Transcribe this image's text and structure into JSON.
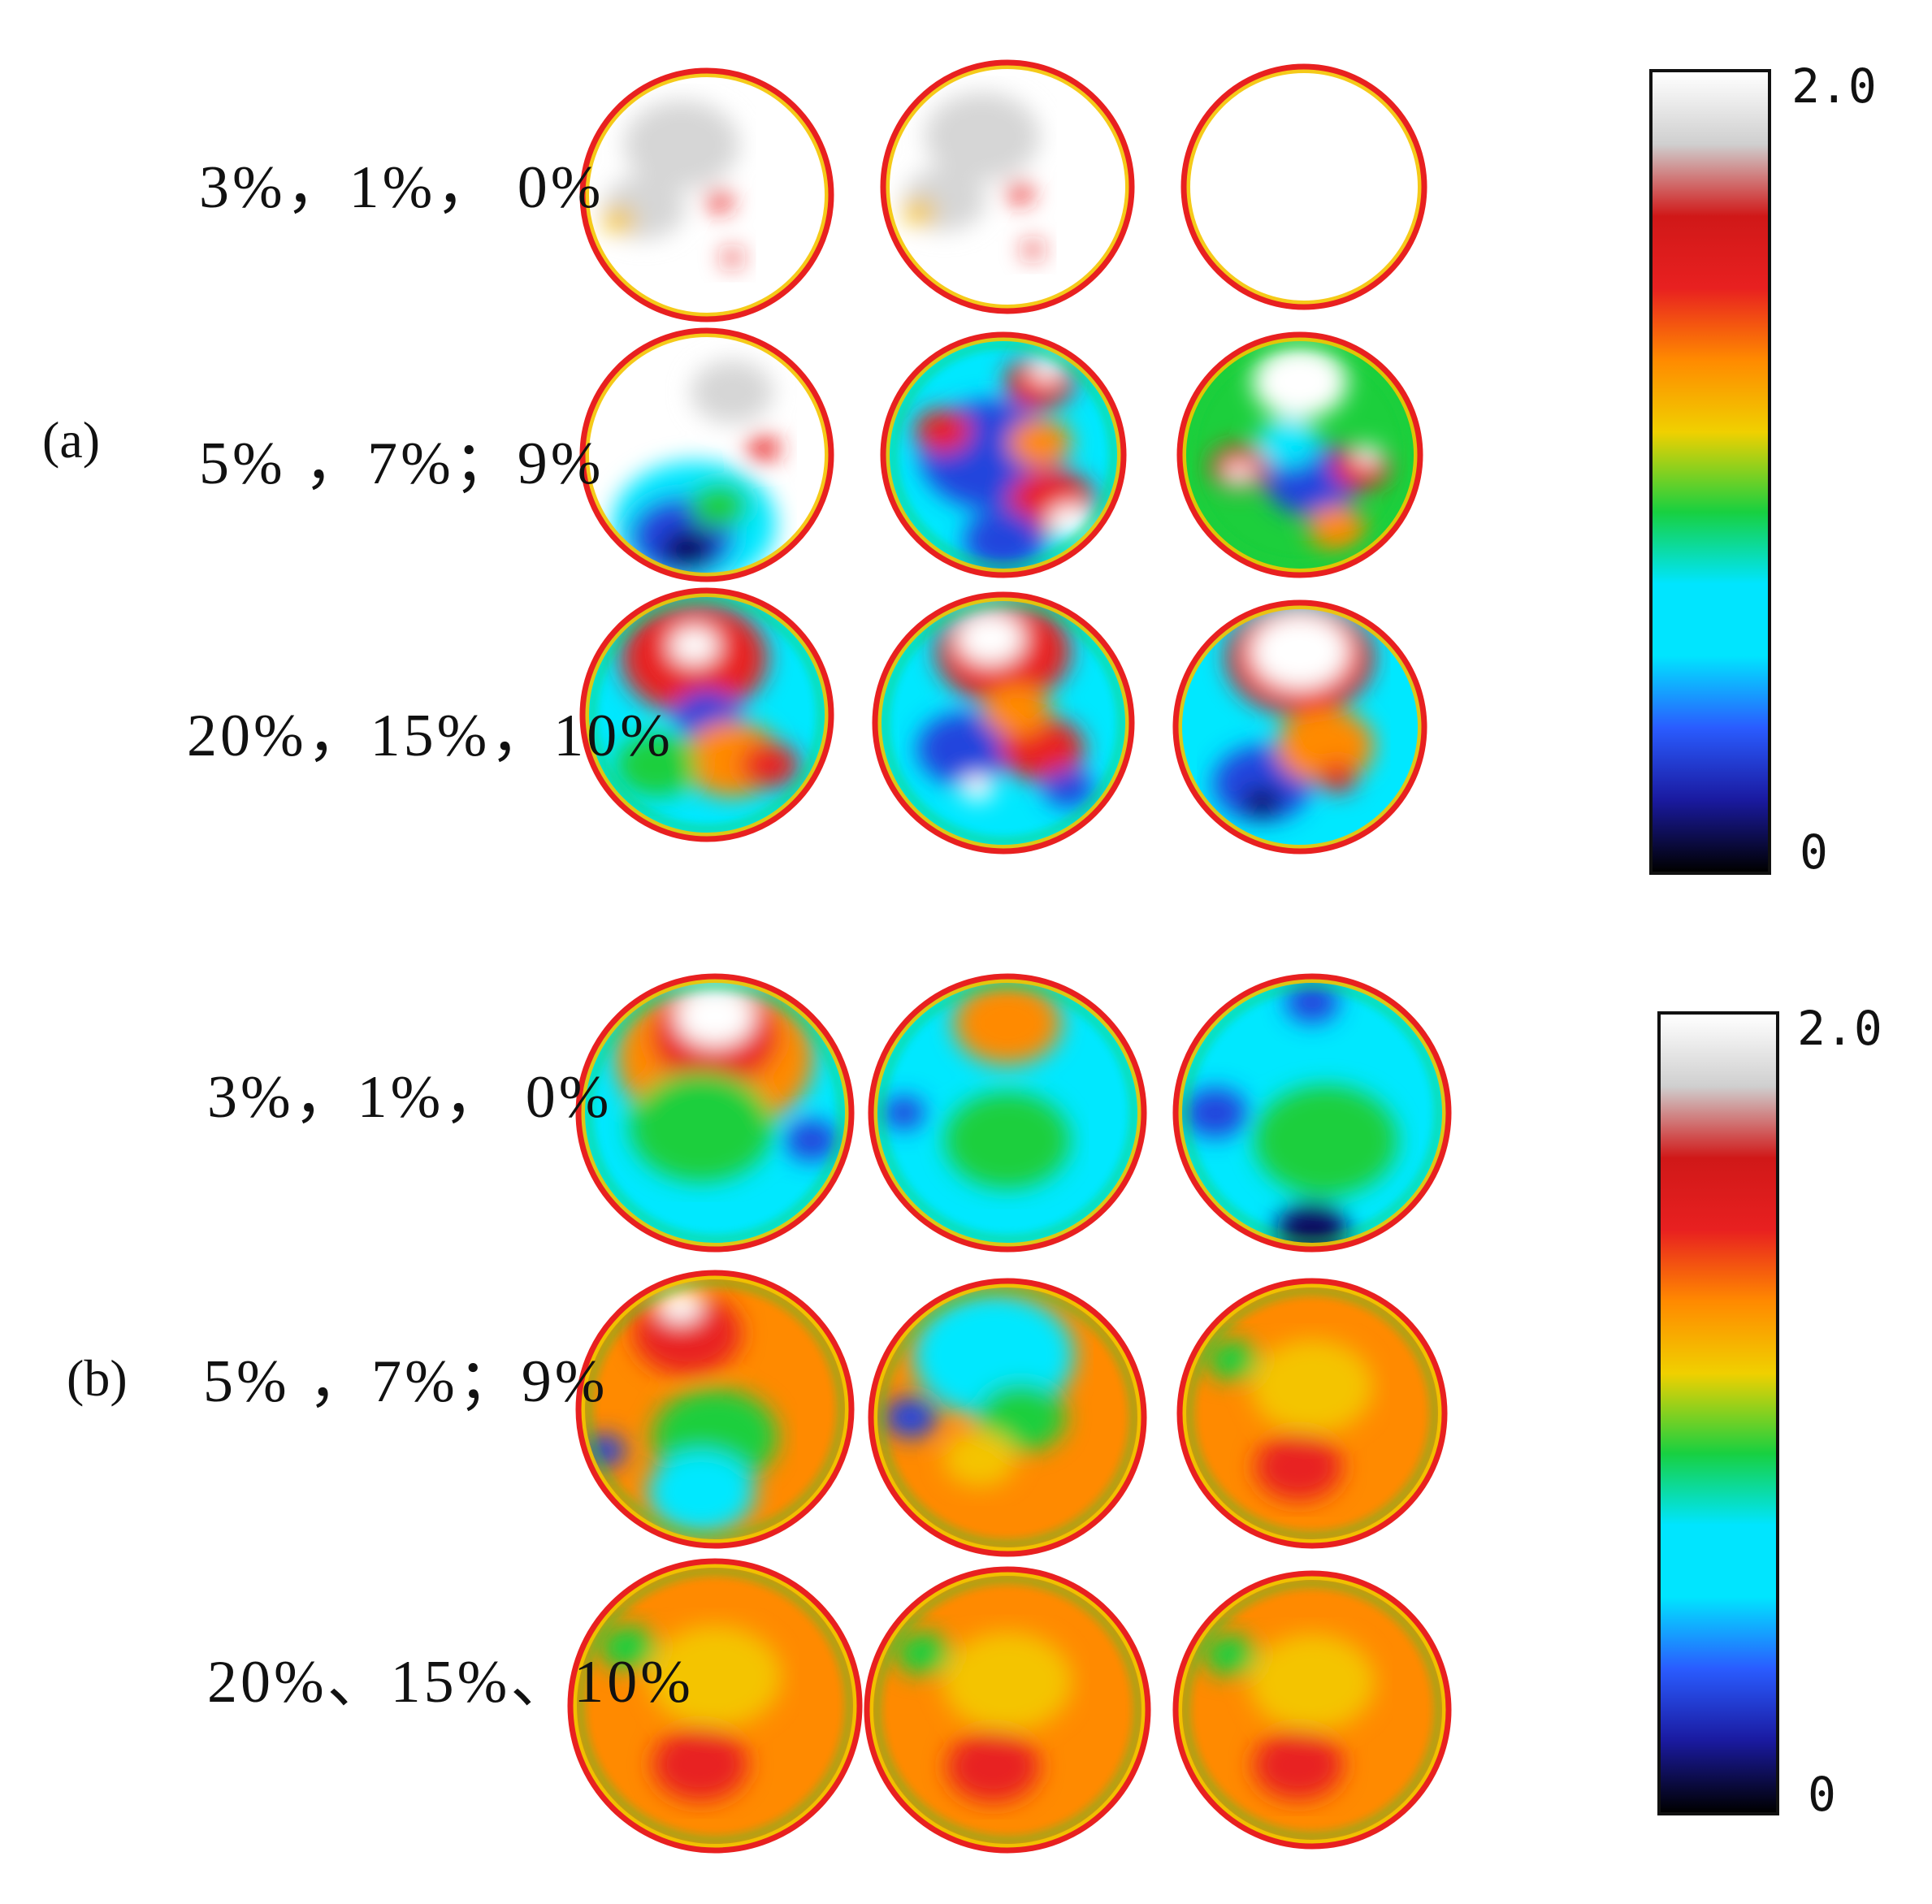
{
  "panels": [
    {
      "label": "(a)",
      "rows": [
        {
          "label": "3%，1%，  0%",
          "circles": [
            "sparse-white",
            "sparse-white",
            "empty-white"
          ]
        },
        {
          "label": "5% ，7%；9%",
          "circles": [
            "white-blue",
            "blue-red",
            "mixed-green"
          ]
        },
        {
          "label": "20%，15%，10%",
          "circles": [
            "red-cyan",
            "red-blue",
            "white-orange"
          ]
        }
      ],
      "colorbar": {
        "max_label": "2.0",
        "min_label": "0"
      }
    },
    {
      "label": "(b)",
      "rows": [
        {
          "label": "3%，1%，  0%",
          "circles": [
            "white-green",
            "cyan",
            "cyan-blue"
          ]
        },
        {
          "label": "5% ，7%；9%",
          "circles": [
            "orange-green",
            "cyan-orange",
            "orange"
          ]
        },
        {
          "label": "20%、15%、10%",
          "circles": [
            "orange",
            "orange",
            "orange"
          ]
        }
      ],
      "colorbar": {
        "max_label": "2.0",
        "min_label": "0"
      }
    }
  ],
  "colormap": [
    "#000000",
    "#1a1aa0",
    "#2a5cff",
    "#00e5ff",
    "#00e5ff",
    "#18d040",
    "#f0d000",
    "#ff8a00",
    "#e82020",
    "#d01818",
    "#cfcfcf",
    "#ffffff"
  ]
}
